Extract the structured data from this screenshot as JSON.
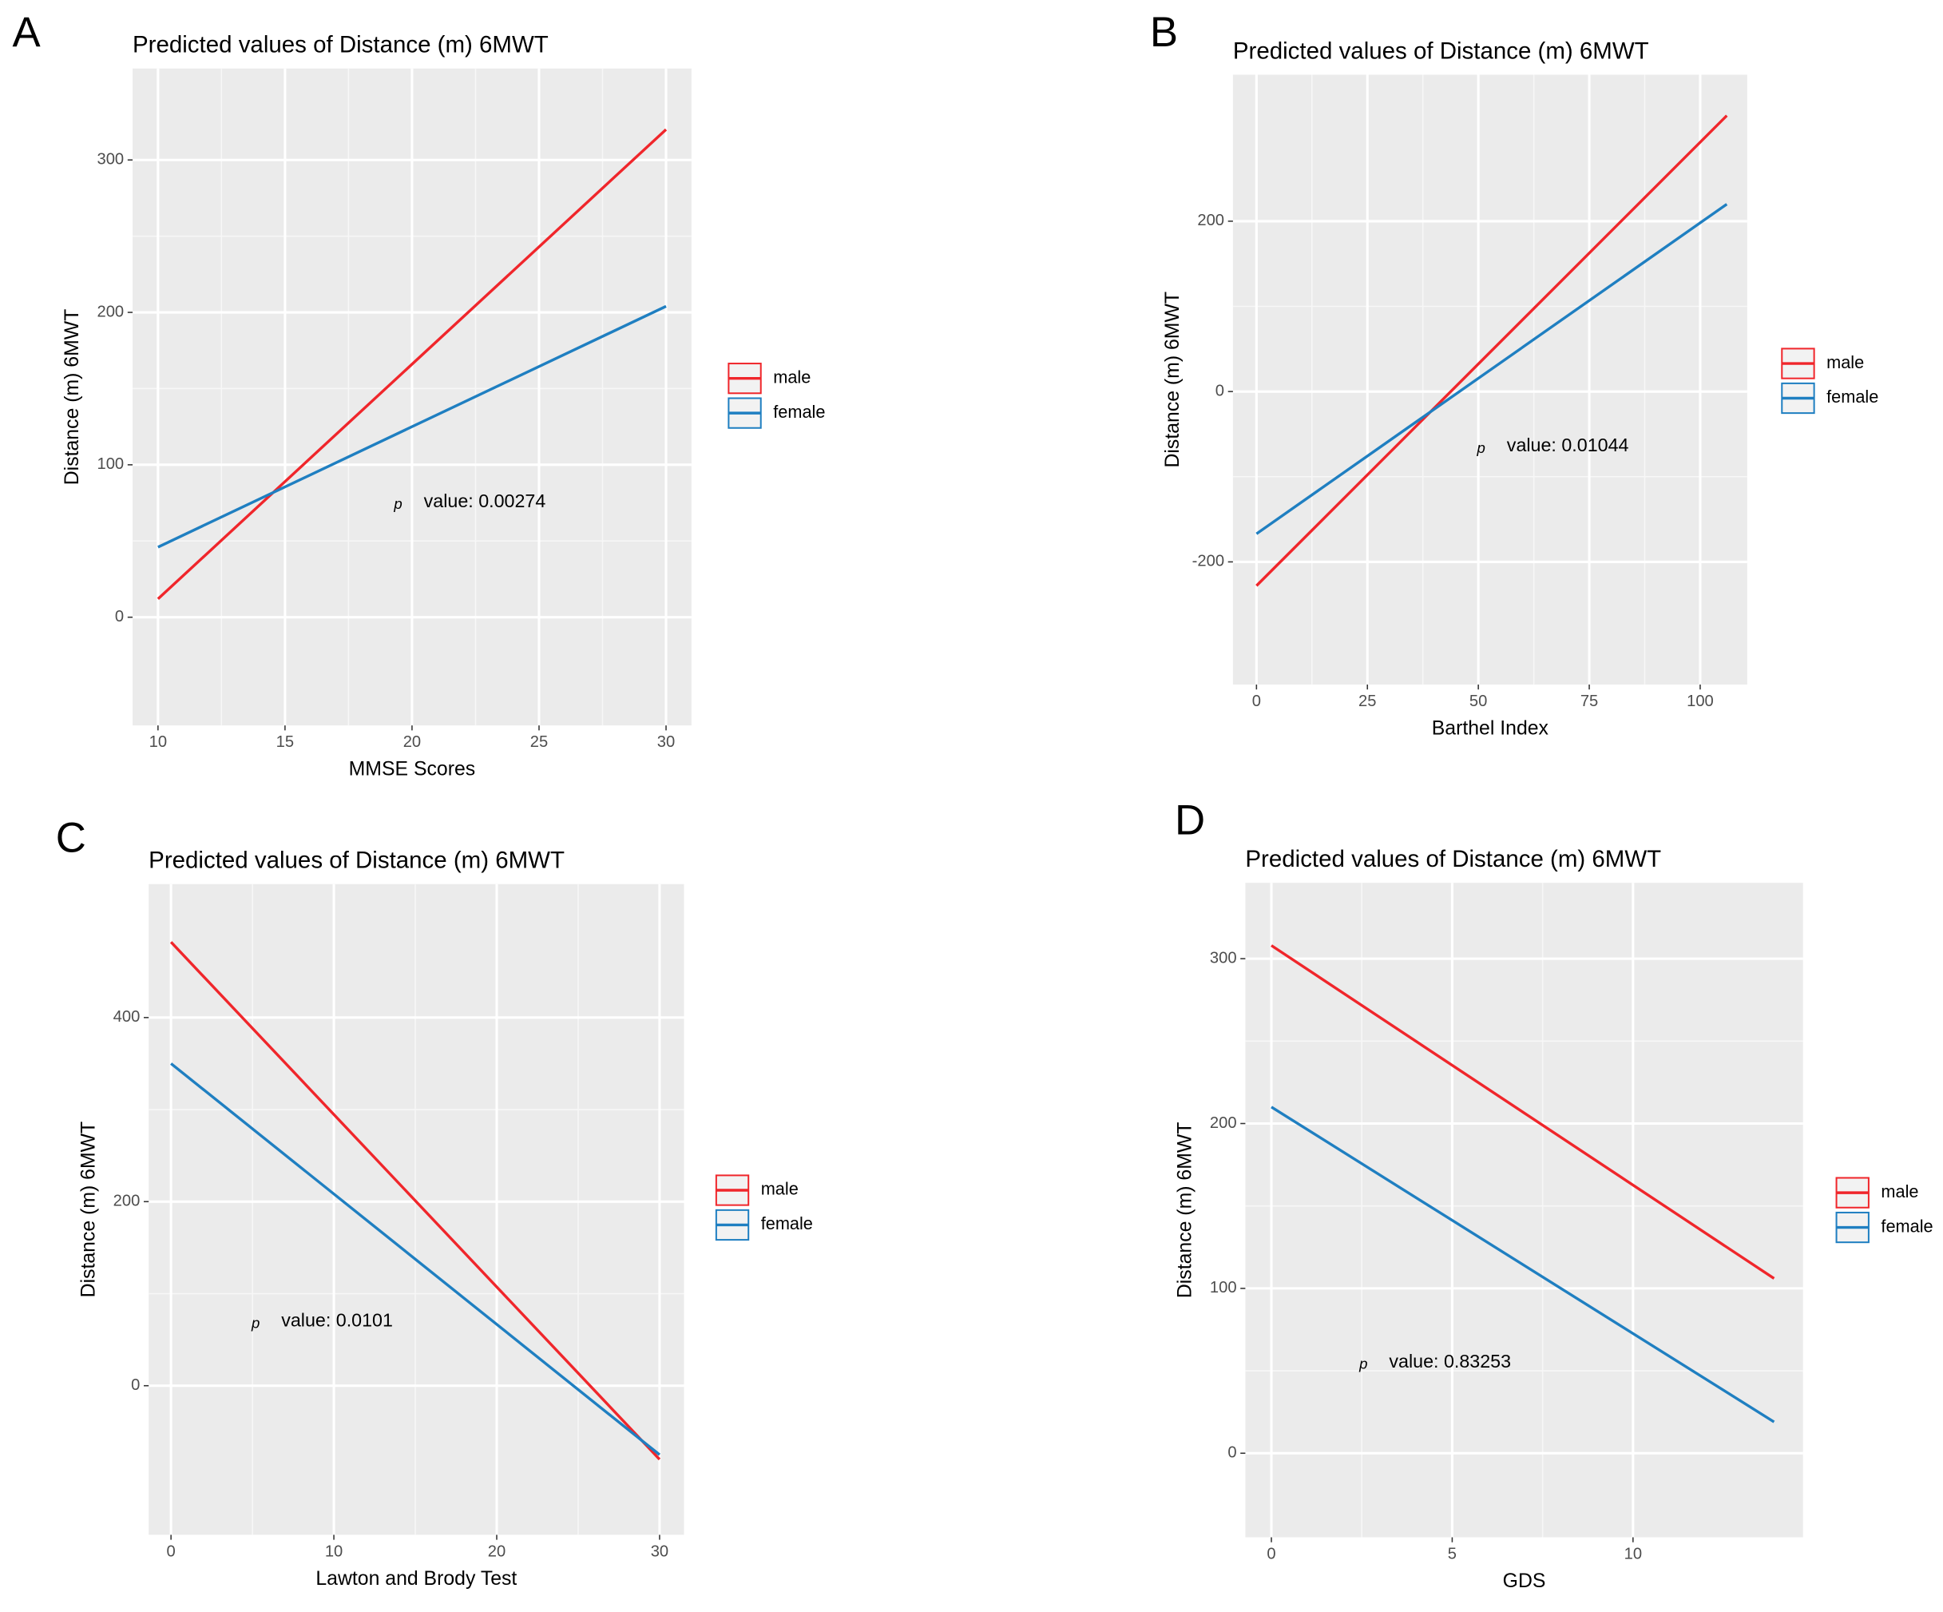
{
  "chart_data": [
    {
      "type": "line",
      "panel_label": "A",
      "title": "Predicted values of Distance (m) 6MWT",
      "xlabel": "MMSE Scores",
      "ylabel": "Distance (m) 6MWT",
      "x": [
        10,
        30
      ],
      "xlim": [
        9,
        31
      ],
      "xticks": [
        10,
        15,
        20,
        25,
        30
      ],
      "ylim": [
        -71,
        360
      ],
      "yticks": [
        0,
        100,
        200,
        300
      ],
      "grid": true,
      "series": [
        {
          "name": "male",
          "color": "#f0262b",
          "values": [
            12,
            320
          ]
        },
        {
          "name": "female",
          "color": "#1f7fc1",
          "values": [
            46,
            204
          ]
        }
      ],
      "annotation": {
        "symbol": "p",
        "text": "value: 0.00274"
      }
    },
    {
      "type": "line",
      "panel_label": "B",
      "title": "Predicted values of Distance (m) 6MWT",
      "xlabel": "Barthel Index",
      "ylabel": "Distance (m) 6MWT",
      "x": [
        0,
        106
      ],
      "xlim": [
        -5.3,
        110.6
      ],
      "xticks": [
        0,
        25,
        50,
        75,
        100
      ],
      "ylim": [
        -344,
        372
      ],
      "yticks": [
        -200,
        0,
        200
      ],
      "grid": true,
      "series": [
        {
          "name": "male",
          "color": "#f0262b",
          "values": [
            -228,
            324
          ]
        },
        {
          "name": "female",
          "color": "#1f7fc1",
          "values": [
            -167,
            220
          ]
        }
      ],
      "annotation": {
        "symbol": "p",
        "text": "value: 0.01044"
      }
    },
    {
      "type": "line",
      "panel_label": "C",
      "title": "Predicted values of Distance (m) 6MWT",
      "xlabel": "Lawton and Brody Test",
      "ylabel": "Distance (m) 6MWT",
      "x": [
        0,
        30
      ],
      "xlim": [
        -1.37,
        31.5
      ],
      "xticks": [
        0,
        10,
        20,
        30
      ],
      "ylim": [
        -162,
        545
      ],
      "yticks": [
        0,
        200,
        400
      ],
      "grid": true,
      "series": [
        {
          "name": "male",
          "color": "#f0262b",
          "values": [
            482,
            -80
          ]
        },
        {
          "name": "female",
          "color": "#1f7fc1",
          "values": [
            350,
            -75
          ]
        }
      ],
      "annotation": {
        "symbol": "p",
        "text": "value: 0.0101"
      }
    },
    {
      "type": "line",
      "panel_label": "D",
      "title": "Predicted values of Distance (m) 6MWT",
      "xlabel": "GDS",
      "ylabel": "Distance (m) 6MWT",
      "x": [
        0,
        13.9
      ],
      "xlim": [
        -0.72,
        14.7
      ],
      "xticks": [
        0,
        5,
        10
      ],
      "ylim": [
        -51,
        346
      ],
      "yticks": [
        0,
        100,
        200,
        300
      ],
      "grid": true,
      "series": [
        {
          "name": "male",
          "color": "#f0262b",
          "values": [
            308,
            106
          ]
        },
        {
          "name": "female",
          "color": "#1f7fc1",
          "values": [
            210,
            19
          ]
        }
      ],
      "annotation": {
        "symbol": "p",
        "text": "value: 0.83253"
      }
    }
  ]
}
